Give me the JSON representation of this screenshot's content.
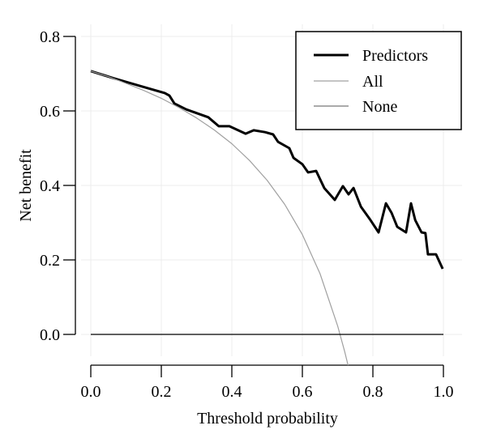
{
  "chart_data": {
    "type": "line",
    "xlabel": "Threshold probability",
    "ylabel": "Net benefit",
    "xlim": [
      0,
      1
    ],
    "ylim": [
      -0.08,
      0.8
    ],
    "xticks": [
      "0.0",
      "0.2",
      "0.4",
      "0.6",
      "0.8",
      "1.0"
    ],
    "yticks": [
      "0.0",
      "0.2",
      "0.4",
      "0.6",
      "0.8"
    ],
    "grid": true,
    "legend_position": "top-right",
    "series": [
      {
        "name": "Predictors",
        "color": "#000000",
        "x": [
          0.0,
          0.064,
          0.14,
          0.21,
          0.223,
          0.237,
          0.271,
          0.333,
          0.363,
          0.393,
          0.439,
          0.462,
          0.494,
          0.517,
          0.531,
          0.563,
          0.575,
          0.6,
          0.616,
          0.639,
          0.662,
          0.692,
          0.715,
          0.731,
          0.745,
          0.766,
          0.793,
          0.816,
          0.837,
          0.853,
          0.869,
          0.894,
          0.908,
          0.92,
          0.938,
          0.949,
          0.956,
          0.979,
          0.998
        ],
        "y": [
          0.707,
          0.688,
          0.667,
          0.648,
          0.641,
          0.62,
          0.604,
          0.583,
          0.559,
          0.559,
          0.539,
          0.548,
          0.543,
          0.537,
          0.517,
          0.5,
          0.474,
          0.457,
          0.435,
          0.439,
          0.393,
          0.361,
          0.398,
          0.376,
          0.393,
          0.343,
          0.307,
          0.274,
          0.352,
          0.326,
          0.289,
          0.274,
          0.352,
          0.307,
          0.274,
          0.272,
          0.215,
          0.215,
          0.176
        ]
      },
      {
        "name": "All",
        "color": "#a0a0a0",
        "x": [
          0,
          0.05,
          0.1,
          0.15,
          0.2,
          0.25,
          0.3,
          0.35,
          0.4,
          0.45,
          0.5,
          0.55,
          0.6,
          0.65,
          0.7,
          0.72,
          0.73
        ],
        "y": [
          0.707,
          0.692,
          0.674,
          0.655,
          0.634,
          0.609,
          0.581,
          0.549,
          0.512,
          0.467,
          0.414,
          0.349,
          0.268,
          0.163,
          0.023,
          -0.046,
          -0.085
        ]
      },
      {
        "name": "None",
        "color": "#000000",
        "x": [
          0,
          1
        ],
        "y": [
          0,
          0
        ]
      }
    ]
  }
}
